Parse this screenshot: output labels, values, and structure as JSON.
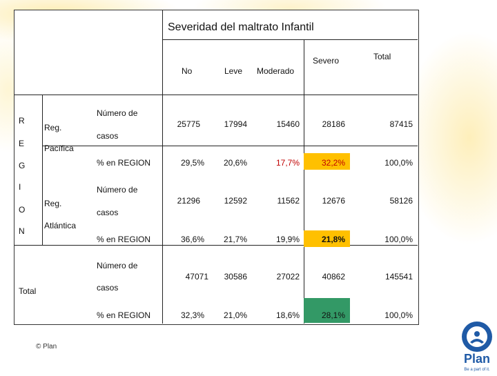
{
  "title": "Severidad del maltrato Infantil",
  "columns": {
    "no": "No",
    "leve": "Leve",
    "moderado": "Moderado",
    "severo": "Severo",
    "total": "Total"
  },
  "region_letters": [
    "R",
    "E",
    "G",
    "I",
    "O",
    "N"
  ],
  "regions": [
    {
      "name_line1": "Reg.",
      "name_line2": "Pacífica",
      "count_label_line1": "Número de",
      "count_label_line2": "casos",
      "pct_label": "% en REGION",
      "counts": [
        "25775",
        "17994",
        "15460",
        "28186",
        "87415"
      ],
      "pcts": [
        "29,5%",
        "20,6%",
        "17,7%",
        "32,2%",
        "100,0%"
      ]
    },
    {
      "name_line1": "Reg.",
      "name_line2": "Atlántica",
      "count_label_line1": "Número de",
      "count_label_line2": "casos",
      "pct_label": "% en REGION",
      "counts": [
        "21296",
        "12592",
        "11562",
        "12676",
        "58126"
      ],
      "pcts": [
        "36,6%",
        "21,7%",
        "19,9%",
        "21,8%",
        "100,0%"
      ]
    }
  ],
  "total_row": {
    "label": "Total",
    "count_label_line1": "Número de",
    "count_label_line2": "casos",
    "pct_label": "% en REGION",
    "counts": [
      "47071",
      "30586",
      "27022",
      "40862",
      "145541"
    ],
    "pcts": [
      "32,3%",
      "21,0%",
      "18,6%",
      "28,1%",
      "100,0%"
    ]
  },
  "highlight_colors": {
    "pacifica_severo": "#ffc000",
    "atlantica_severo": "#ffc000",
    "total_severo": "#339966",
    "moderado_text": "#c00000"
  },
  "footer": "© Plan",
  "logo": {
    "name": "Plan",
    "tagline": "Be a part of it.",
    "color": "#1f5aa6"
  }
}
